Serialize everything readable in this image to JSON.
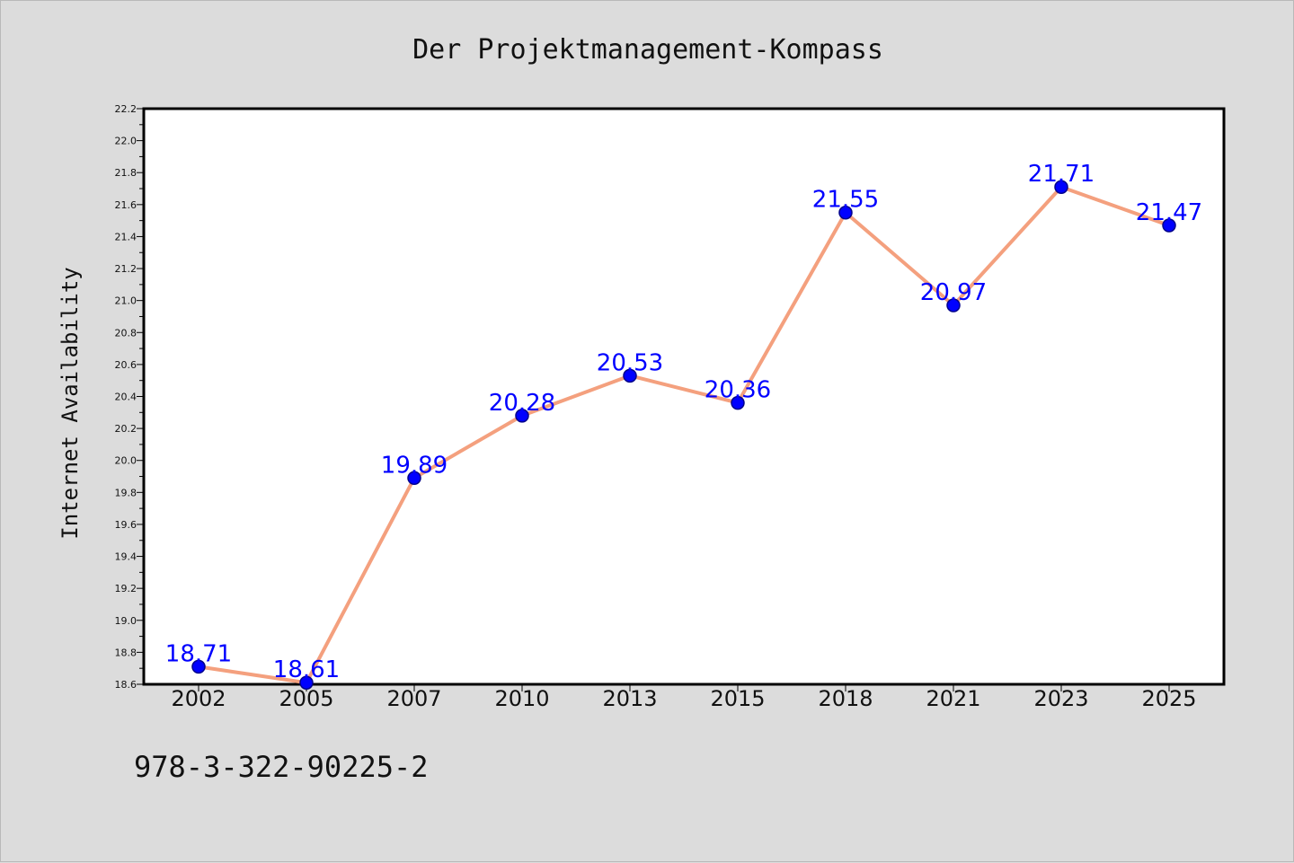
{
  "page": {
    "isbn": "978-3-322-90225-2"
  },
  "chart_data": {
    "type": "line",
    "title": "Der Projektmanagement-Kompass",
    "xlabel": "",
    "ylabel": "Internet Availability",
    "categories": [
      "2002",
      "2005",
      "2007",
      "2010",
      "2013",
      "2015",
      "2018",
      "2021",
      "2023",
      "2025"
    ],
    "series": [
      {
        "values": [
          18.71,
          18.61,
          19.89,
          20.28,
          20.53,
          20.36,
          21.55,
          20.97,
          21.71,
          21.47
        ],
        "data_labels": [
          "18.71",
          "18.61",
          "19.89",
          "20.28",
          "20.53",
          "20.36",
          "21.55",
          "20.97",
          "21.71",
          "21.47"
        ]
      }
    ],
    "ylim": [
      18.6,
      22.2
    ],
    "yticks": [
      "18.6",
      "18.8",
      "19.0",
      "19.2",
      "19.4",
      "19.6",
      "19.8",
      "20.0",
      "20.2",
      "20.4",
      "20.6",
      "20.8",
      "21.0",
      "21.2",
      "21.4",
      "21.6",
      "21.8",
      "22.0",
      "22.2"
    ],
    "grid": false,
    "legend": "none",
    "colors": {
      "line": "#f4a07e",
      "marker": "#0000ff",
      "marker_edge": "#00008b",
      "data_label": "#0000ff",
      "plot_background": "#ffffff",
      "figure_background": "#dcdcdc"
    }
  }
}
